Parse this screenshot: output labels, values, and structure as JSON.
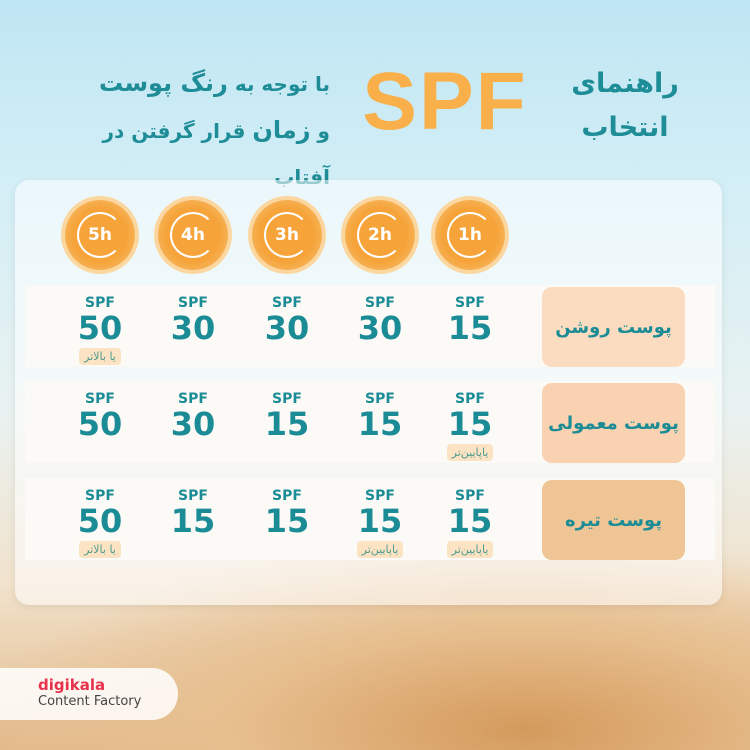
{
  "header": {
    "spf": "SPF",
    "right_line1": "راهنمای",
    "right_line2": "انتخاب",
    "left_line1_a": "با توجه به ",
    "left_line1_b": "رنگ پوست",
    "left_line2_a": "و ",
    "left_line2_b": "زمان",
    "left_line2_c": " قرار گرفتن در آفتاب"
  },
  "hours": [
    "1h",
    "2h",
    "3h",
    "4h",
    "5h"
  ],
  "spf_label": "SPF",
  "rows": [
    {
      "label": "پوست روشن",
      "bg": "#fbdcc0",
      "cells": [
        {
          "v": "15",
          "n": ""
        },
        {
          "v": "30",
          "n": ""
        },
        {
          "v": "30",
          "n": ""
        },
        {
          "v": "30",
          "n": ""
        },
        {
          "v": "50",
          "n": "یا بالاتر"
        }
      ]
    },
    {
      "label": "پوست معمولی",
      "bg": "#f9d2b1",
      "cells": [
        {
          "v": "15",
          "n": "یاپایین‌تر"
        },
        {
          "v": "15",
          "n": ""
        },
        {
          "v": "15",
          "n": ""
        },
        {
          "v": "30",
          "n": ""
        },
        {
          "v": "50",
          "n": ""
        }
      ]
    },
    {
      "label": "پوست تیره",
      "bg": "#efc595",
      "cells": [
        {
          "v": "15",
          "n": "یاپایین‌تر"
        },
        {
          "v": "15",
          "n": "یاپایین‌تر"
        },
        {
          "v": "15",
          "n": ""
        },
        {
          "v": "15",
          "n": ""
        },
        {
          "v": "50",
          "n": "یا بالاتر"
        }
      ]
    }
  ],
  "brand": {
    "name": "digikala",
    "sub": "Content Factory"
  }
}
